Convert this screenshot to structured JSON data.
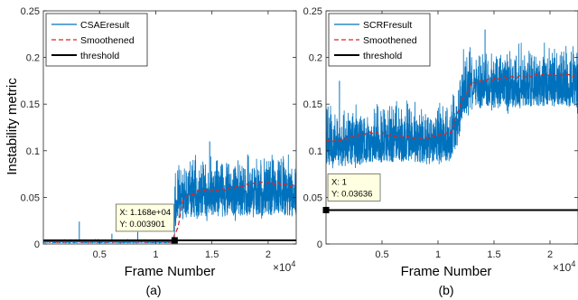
{
  "figure": {
    "shared_ylabel": "Instability metric",
    "x_multiplier_base": "×10",
    "x_multiplier_exp": "4"
  },
  "colors": {
    "raw": "#0072BD",
    "smooth": "#D62728",
    "threshold": "#000000",
    "axis": "#262626",
    "datatip_bg": "#FFFFE1"
  },
  "chart_data": [
    {
      "type": "line",
      "panel_label": "(a)",
      "xlabel": "Frame Number",
      "ylabel": "Instability metric",
      "xlim": [
        0,
        22500
      ],
      "ylim": [
        0,
        0.25
      ],
      "xticks": [
        0.5,
        1,
        1.5,
        2
      ],
      "x_tick_scale": 10000,
      "yticks": [
        "0",
        "0.05",
        "0.1",
        "0.15",
        "0.2",
        "0.25"
      ],
      "grid": false,
      "legend": {
        "location": "top-left",
        "entries": [
          "CSAEresult",
          "Smoothened",
          "threshold"
        ]
      },
      "series": [
        {
          "name": "CSAEresult",
          "style": "raw",
          "x": [
            0,
            11650,
            11700,
            12000,
            14000,
            17000,
            20000,
            22500
          ],
          "y": [
            0.003,
            0.003,
            0.045,
            0.06,
            0.06,
            0.062,
            0.063,
            0.061
          ]
        },
        {
          "name": "Smoothened",
          "style": "smooth",
          "x": [
            0,
            11500,
            12000,
            12500,
            14000,
            16000,
            18000,
            20000,
            22500
          ],
          "y": [
            0.003,
            0.003,
            0.02,
            0.05,
            0.057,
            0.058,
            0.063,
            0.066,
            0.062
          ]
        },
        {
          "name": "threshold",
          "style": "threshold",
          "x": [
            0,
            22500
          ],
          "y": [
            0.0039,
            0.0039
          ]
        }
      ],
      "noise": {
        "start": 11680,
        "amp_before": 0.0025,
        "amp_after": 0.04,
        "spikes": [
          [
            3200,
            0.024
          ],
          [
            6100,
            0.011
          ],
          [
            8400,
            0.013
          ],
          [
            14800,
            0.11
          ]
        ]
      },
      "datatip": {
        "x": 11680,
        "y": 0.003901,
        "label_x": "X: 1.168e+04",
        "label_y": "Y: 0.003901"
      }
    },
    {
      "type": "line",
      "panel_label": "(b)",
      "xlabel": "Frame Number",
      "ylabel": "",
      "xlim": [
        0,
        22500
      ],
      "ylim": [
        0,
        0.25
      ],
      "xticks": [
        0.5,
        1,
        1.5,
        2
      ],
      "x_tick_scale": 10000,
      "yticks": [
        "0",
        "0.05",
        "0.1",
        "0.15",
        "0.2",
        "0.25"
      ],
      "grid": false,
      "legend": {
        "location": "top-left",
        "entries": [
          "SCRFresult",
          "Smoothened",
          "threshold"
        ]
      },
      "series": [
        {
          "name": "SCRFresult",
          "style": "raw",
          "x": [
            0,
            3000,
            6000,
            9000,
            11000,
            11800,
            12200,
            13000,
            16000,
            19000,
            22500
          ],
          "y": [
            0.112,
            0.118,
            0.12,
            0.118,
            0.12,
            0.14,
            0.17,
            0.176,
            0.178,
            0.18,
            0.178
          ]
        },
        {
          "name": "Smoothened",
          "style": "smooth",
          "x": [
            0,
            2000,
            4000,
            6000,
            8000,
            10000,
            11200,
            12000,
            13000,
            15000,
            18000,
            20000,
            22500
          ],
          "y": [
            0.11,
            0.113,
            0.12,
            0.116,
            0.113,
            0.116,
            0.12,
            0.15,
            0.172,
            0.177,
            0.18,
            0.182,
            0.18
          ]
        },
        {
          "name": "threshold",
          "style": "threshold",
          "x": [
            0,
            22500
          ],
          "y": [
            0.03636,
            0.03636
          ]
        }
      ],
      "noise": {
        "start": 0,
        "amp_before": 0.035,
        "amp_after": 0.04,
        "spikes": [
          [
            1200,
            0.175
          ],
          [
            14200,
            0.23
          ]
        ]
      },
      "datatip": {
        "x": 1,
        "y": 0.03636,
        "label_x": "X: 1",
        "label_y": "Y: 0.03636"
      }
    }
  ]
}
